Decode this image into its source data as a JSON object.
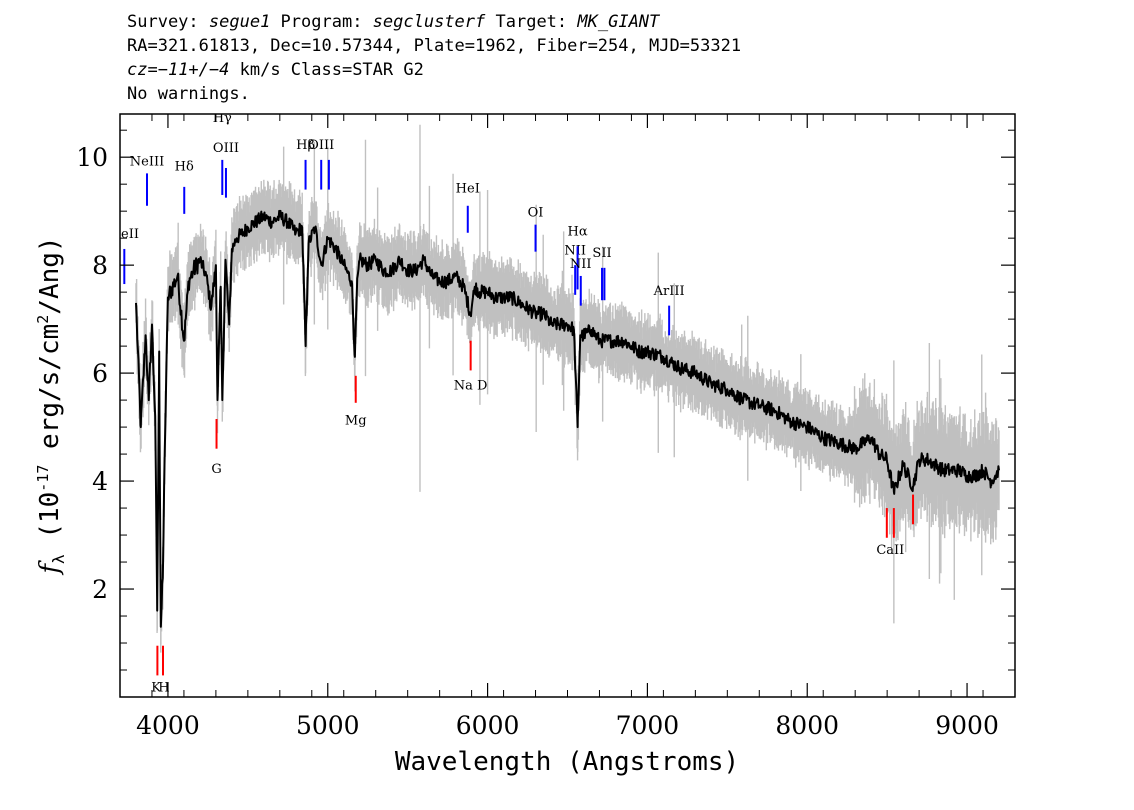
{
  "header": {
    "line1": {
      "survey_label": "Survey: ",
      "survey": "segue1",
      "program_label": " Program: ",
      "program": "segclusterf",
      "target_label": " Target: ",
      "target": "MK_GIANT"
    },
    "line2": "RA=321.61813, Dec=10.57344, Plate=1962, Fiber=254, MJD=53321",
    "line3": {
      "cz_label": "cz",
      "cz_value": "=−11+/−4",
      "cz_unit": " km/s Class=STAR G2"
    },
    "line4": "No warnings."
  },
  "chart_data": {
    "type": "line",
    "title": "",
    "xlabel": "Wavelength (Angstroms)",
    "ylabel": "f_λ (10^-17 erg/s/cm^2/Ang)",
    "xlim": [
      3700,
      9300
    ],
    "ylim": [
      0,
      10.8
    ],
    "xticks": [
      4000,
      5000,
      6000,
      7000,
      8000,
      9000
    ],
    "yticks": [
      2,
      4,
      6,
      8,
      10
    ],
    "grid": false,
    "colors": {
      "flux": "#000000",
      "noise_band": "#c0c0c0",
      "emission": "#0000ff",
      "absorption": "#ff0000"
    },
    "series": [
      {
        "style": "black-line",
        "x": [
          3800,
          3830,
          3860,
          3880,
          3900,
          3920,
          3933,
          3945,
          3955,
          3968,
          3980,
          4000,
          4030,
          4060,
          4101,
          4130,
          4160,
          4200,
          4240,
          4270,
          4300,
          4310,
          4330,
          4340,
          4360,
          4383,
          4400,
          4430,
          4470,
          4500,
          4550,
          4600,
          4650,
          4700,
          4750,
          4800,
          4840,
          4861,
          4880,
          4920,
          4960,
          5000,
          5050,
          5100,
          5150,
          5170,
          5183,
          5200,
          5250,
          5300,
          5350,
          5400,
          5450,
          5500,
          5550,
          5600,
          5650,
          5700,
          5750,
          5800,
          5850,
          5893,
          5920,
          5950,
          6000,
          6050,
          6100,
          6150,
          6200,
          6250,
          6300,
          6350,
          6400,
          6450,
          6500,
          6540,
          6563,
          6580,
          6600,
          6650,
          6700,
          6750,
          6800,
          6850,
          6900,
          6950,
          7000,
          7100,
          7200,
          7300,
          7400,
          7500,
          7600,
          7700,
          7800,
          7900,
          8000,
          8100,
          8200,
          8300,
          8350,
          8400,
          8450,
          8498,
          8542,
          8600,
          8662,
          8700,
          8750,
          8800,
          8850,
          8900,
          8950,
          9000,
          9050,
          9100,
          9150,
          9200
        ],
        "y": [
          7.3,
          5.0,
          6.7,
          5.5,
          6.9,
          5.2,
          1.6,
          6.4,
          1.3,
          2.2,
          4.6,
          7.4,
          7.6,
          7.8,
          6.6,
          7.7,
          7.9,
          8.1,
          7.8,
          7.2,
          8.0,
          5.5,
          7.6,
          5.5,
          8.1,
          6.9,
          8.3,
          8.5,
          8.6,
          8.7,
          8.8,
          8.9,
          8.8,
          8.9,
          8.8,
          8.6,
          8.7,
          6.5,
          8.4,
          8.7,
          8.0,
          8.5,
          8.3,
          8.0,
          7.7,
          6.3,
          7.6,
          8.1,
          8.0,
          8.1,
          7.9,
          7.9,
          8.1,
          7.9,
          7.9,
          8.1,
          7.8,
          7.7,
          7.7,
          7.8,
          7.6,
          7.1,
          7.6,
          7.5,
          7.5,
          7.4,
          7.4,
          7.4,
          7.3,
          7.2,
          7.1,
          7.1,
          6.9,
          6.9,
          6.9,
          6.8,
          5.0,
          6.7,
          6.7,
          6.8,
          6.6,
          6.6,
          6.6,
          6.6,
          6.5,
          6.4,
          6.4,
          6.3,
          6.1,
          6.0,
          5.8,
          5.7,
          5.5,
          5.4,
          5.3,
          5.1,
          5.0,
          4.8,
          4.7,
          4.6,
          4.7,
          4.8,
          4.5,
          4.4,
          3.8,
          4.3,
          3.9,
          4.4,
          4.4,
          4.3,
          4.2,
          4.2,
          4.2,
          4.1,
          4.1,
          4.2,
          4.0,
          4.2
        ]
      }
    ],
    "emission_lines": [
      {
        "label": "NeII",
        "x": 3727,
        "y0": 7.65,
        "y1": 8.3,
        "label_y": 8.5
      },
      {
        "label": "NeIII",
        "x": 3869,
        "y0": 9.1,
        "y1": 9.7,
        "label_y": 9.85
      },
      {
        "label": "Hδ",
        "x": 4102,
        "y0": 8.95,
        "y1": 9.45,
        "label_y": 9.75
      },
      {
        "label": "Hγ",
        "x": 4340,
        "y0": 9.3,
        "y1": 9.95,
        "label_y": 10.65
      },
      {
        "label": "OIII",
        "x": 4363,
        "y0": 9.25,
        "y1": 9.8,
        "label_y": 10.1
      },
      {
        "label": "Hβ",
        "x": 4861,
        "y0": 9.4,
        "y1": 9.95,
        "label_y": 10.15
      },
      {
        "label": "OIII",
        "x": 4959,
        "y0": 9.4,
        "y1": 9.95,
        "label_y": 10.15
      },
      {
        "label": "OIII",
        "x": 5007,
        "y0": 9.4,
        "y1": 9.95,
        "label_y": 10.15
      },
      {
        "label": "HeI",
        "x": 5876,
        "y0": 8.6,
        "y1": 9.1,
        "label_y": 9.35
      },
      {
        "label": "OI",
        "x": 6300,
        "y0": 8.25,
        "y1": 8.75,
        "label_y": 8.9
      },
      {
        "label": "NII",
        "x": 6548,
        "y0": 7.45,
        "y1": 8.0,
        "label_y": 8.2
      },
      {
        "label": "Hα",
        "x": 6563,
        "y0": 7.55,
        "y1": 8.35,
        "label_y": 8.55
      },
      {
        "label": "NII",
        "x": 6583,
        "y0": 7.25,
        "y1": 7.8,
        "label_y": 7.95
      },
      {
        "label": "SII",
        "x": 6716,
        "y0": 7.35,
        "y1": 7.95,
        "label_y": 8.15
      },
      {
        "label": "SII",
        "x": 6731,
        "y0": 7.35,
        "y1": 7.95,
        "label_y": 8.15
      },
      {
        "label": "ArIII",
        "x": 7136,
        "y0": 6.7,
        "y1": 7.25,
        "label_y": 7.45
      }
    ],
    "absorption_lines": [
      {
        "label": "K",
        "x": 3934,
        "y0": 0.4,
        "y1": 0.95,
        "label_y": 0.1
      },
      {
        "label": "H",
        "x": 3969,
        "y0": 0.4,
        "y1": 0.95,
        "label_y": 0.1
      },
      {
        "label": "G",
        "x": 4304,
        "y0": 4.6,
        "y1": 5.15,
        "label_y": 4.15
      },
      {
        "label": "Mg",
        "x": 5175,
        "y0": 5.45,
        "y1": 5.95,
        "label_y": 5.05
      },
      {
        "label": "Na D",
        "x": 5894,
        "y0": 6.05,
        "y1": 6.6,
        "label_y": 5.7
      },
      {
        "label": "CaII",
        "x": 8498,
        "y0": 2.95,
        "y1": 3.5,
        "label_y": 2.65
      },
      {
        "label": "CaII",
        "x": 8542,
        "y0": 2.95,
        "y1": 3.5,
        "label_y": 2.65
      },
      {
        "label": "CaII",
        "x": 8662,
        "y0": 3.2,
        "y1": 3.75,
        "label_y": 2.65
      }
    ]
  }
}
